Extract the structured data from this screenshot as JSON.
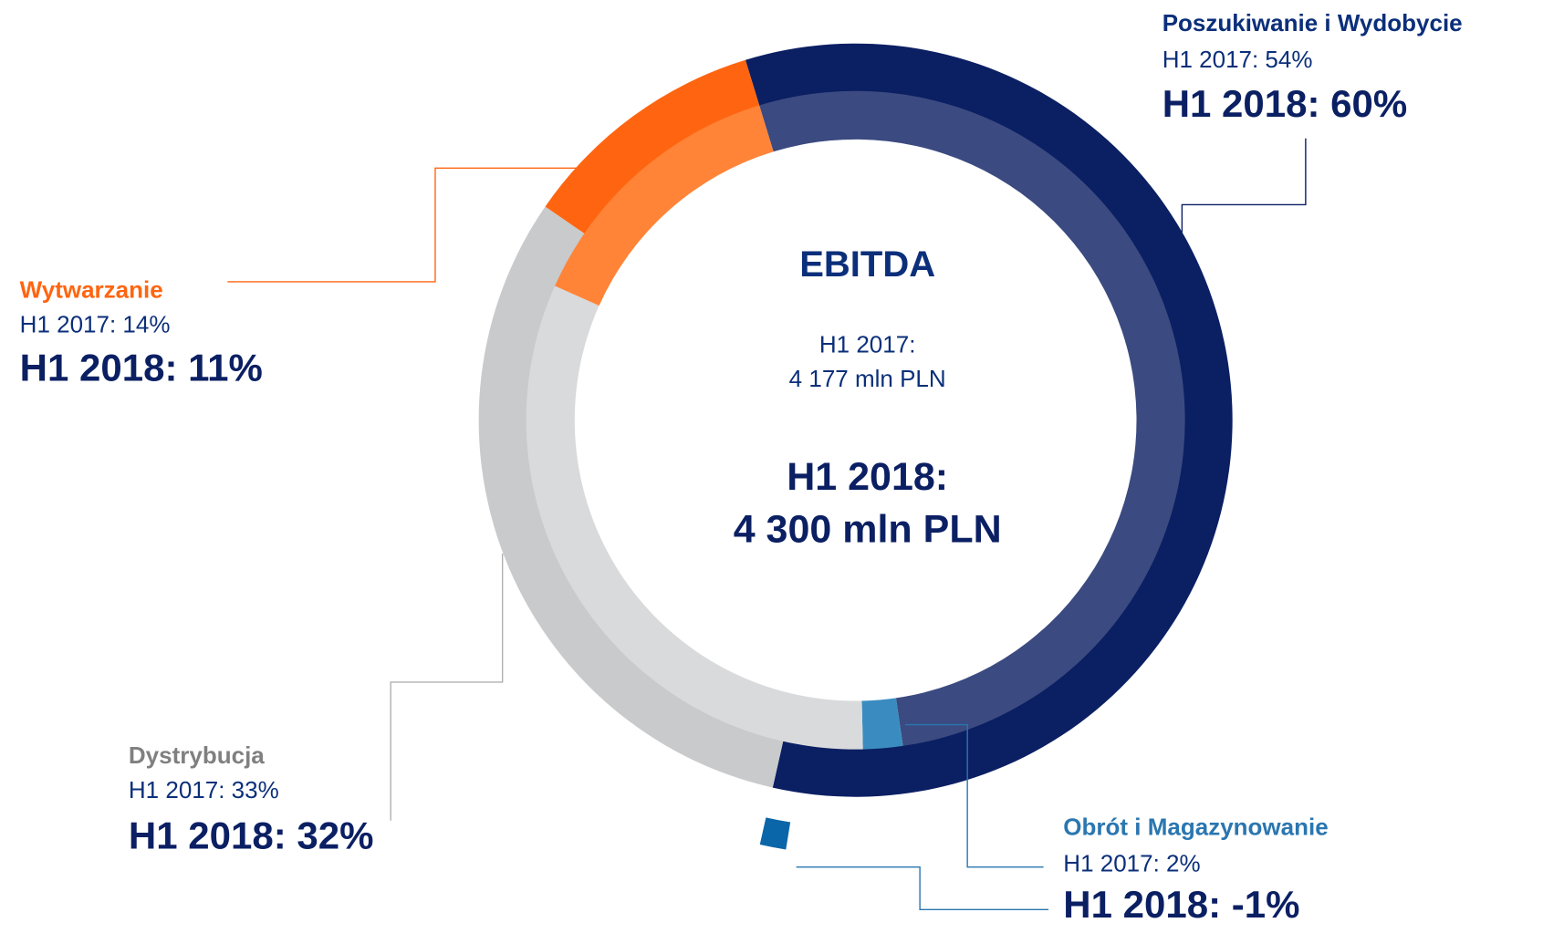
{
  "chart_data": {
    "type": "donut",
    "categories": [
      "Poszukiwanie i Wydobycie",
      "Obrót i Magazynowanie",
      "Dystrybucja",
      "Wytwarzanie"
    ],
    "label_colors": [
      "#0b2f7a",
      "#2a76b0",
      "#808080",
      "#ff6510"
    ],
    "series": [
      {
        "colors": [
          "#0b1f63",
          "#0a66a8",
          "#c9cacc",
          "#ff6510"
        ],
        "values": [
          60,
          -1,
          32,
          11
        ],
        "value_labels": [
          "H1 2018: 60%",
          "H1 2018: -1%",
          "H1 2018: 32%",
          "H1 2018: 11%"
        ]
      },
      {
        "colors": [
          "#3b4a80",
          "#3a8cc0",
          "#d9dadc",
          "#ff8438"
        ],
        "values": [
          54,
          2,
          33,
          14
        ],
        "value_labels": [
          "H1 2017: 54%",
          "H1 2017: 2%",
          "H1 2017: 33%",
          "H1 2017: 14%"
        ]
      }
    ],
    "center_title": "EBITDA",
    "center_2017": [
      "H1 2017:",
      "4 177 mln PLN"
    ],
    "center_2018": [
      "H1 2018:",
      "4 300 mln PLN"
    ]
  }
}
